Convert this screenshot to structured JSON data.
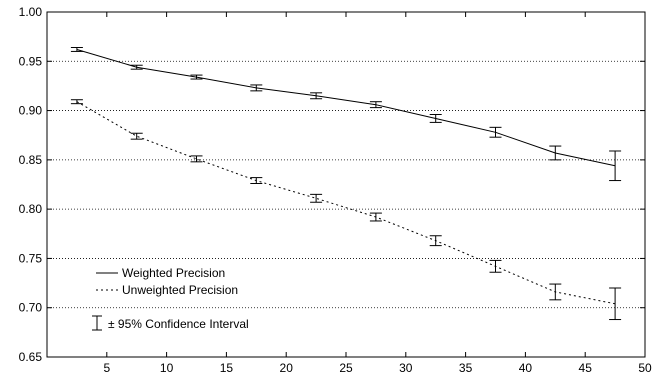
{
  "chart_data": {
    "type": "line",
    "x": [
      2.5,
      7.5,
      12.5,
      17.5,
      22.5,
      27.5,
      32.5,
      37.5,
      42.5,
      47.5
    ],
    "xlim": [
      0,
      50
    ],
    "ylim": [
      0.65,
      1.0
    ],
    "x_ticks": [
      "5",
      "10",
      "15",
      "20",
      "25",
      "30",
      "35",
      "40",
      "45",
      "50"
    ],
    "y_ticks": [
      "0.65",
      "0.70",
      "0.75",
      "0.80",
      "0.85",
      "0.90",
      "0.95",
      "1.00"
    ],
    "grid": "horizontal dotted",
    "legend_placement": "bottom-left",
    "series": [
      {
        "name": "Weighted Precision",
        "line_style": "solid",
        "values": [
          0.962,
          0.944,
          0.934,
          0.923,
          0.915,
          0.906,
          0.892,
          0.878,
          0.857,
          0.844
        ],
        "ci": [
          0.002,
          0.002,
          0.002,
          0.003,
          0.003,
          0.003,
          0.004,
          0.005,
          0.007,
          0.015
        ]
      },
      {
        "name": "Unweighted Precision",
        "line_style": "dotted",
        "values": [
          0.909,
          0.874,
          0.851,
          0.829,
          0.811,
          0.792,
          0.768,
          0.742,
          0.716,
          0.704
        ],
        "ci": [
          0.002,
          0.003,
          0.003,
          0.003,
          0.004,
          0.004,
          0.005,
          0.006,
          0.008,
          0.016
        ]
      }
    ],
    "ci_legend_label": "± 95% Confidence Interval",
    "colors": {
      "line": "#000000",
      "grid": "#000000",
      "background": "#ffffff"
    }
  }
}
